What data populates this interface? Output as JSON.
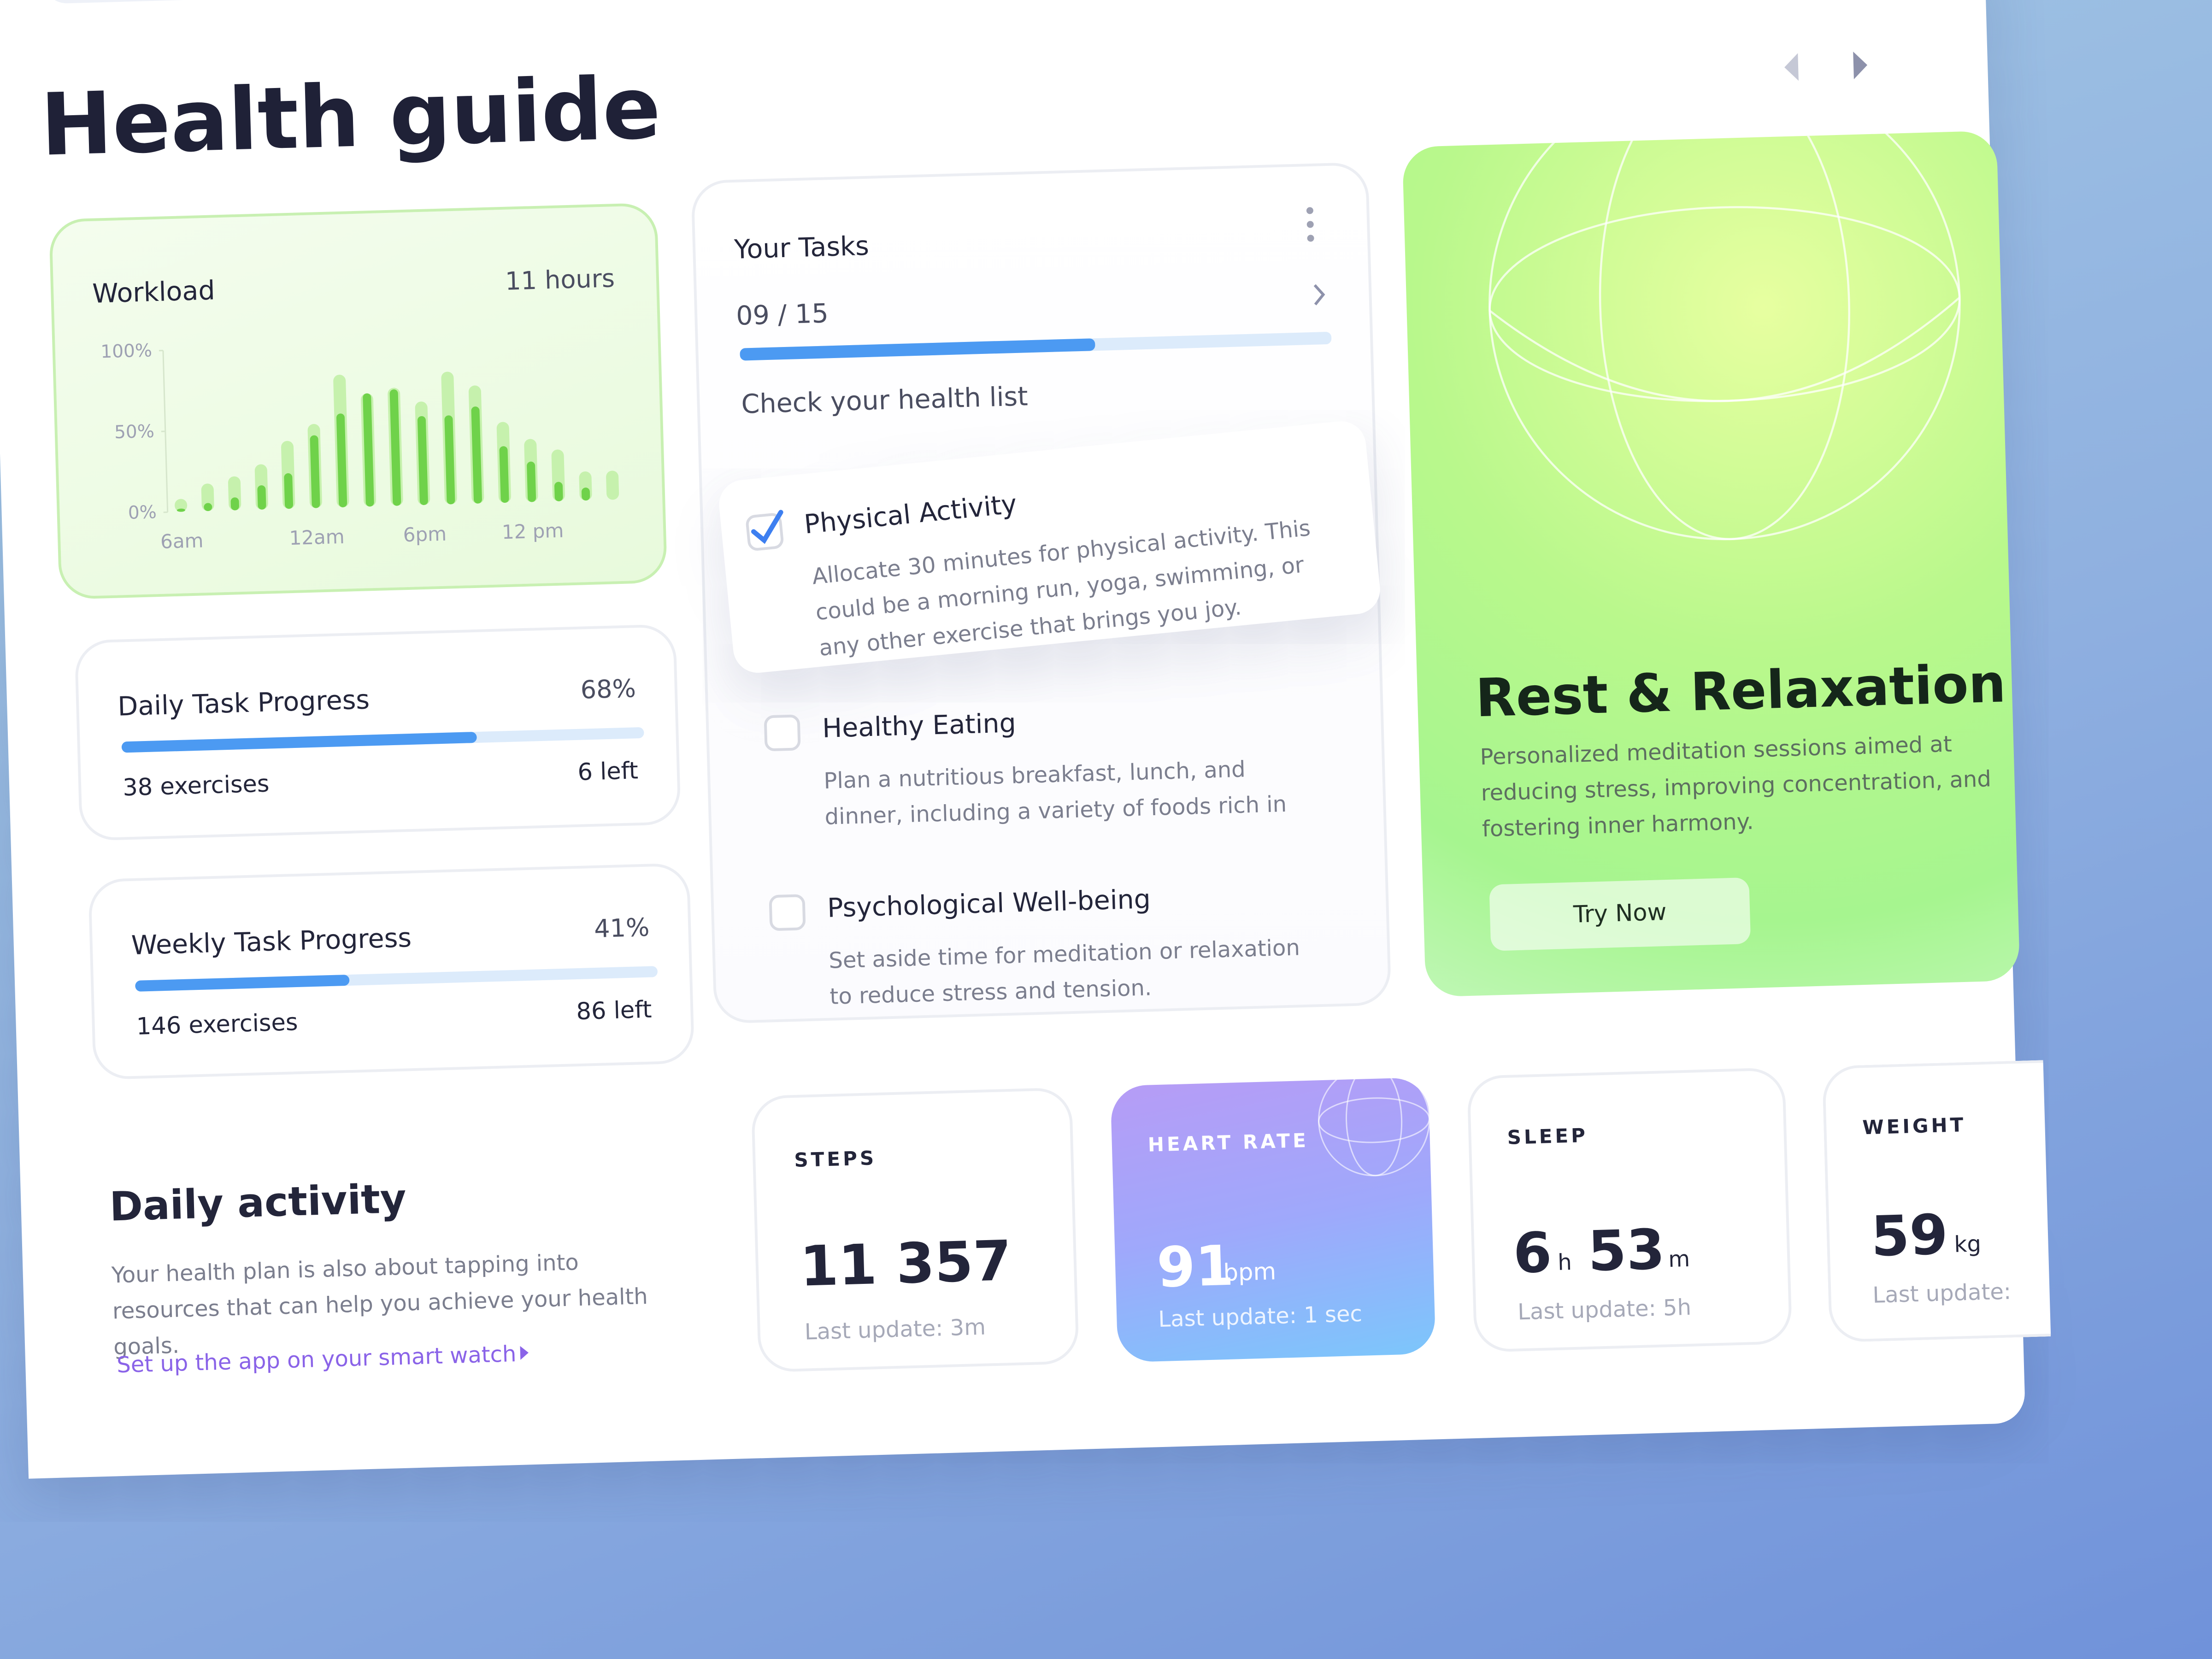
{
  "header": {
    "title": "Health guide"
  },
  "workload": {
    "title": "Workload",
    "total": "11 hours",
    "chart_data": {
      "type": "bar",
      "categories": [
        "6am",
        null,
        null,
        null,
        null,
        "12am",
        null,
        null,
        null,
        "6pm",
        null,
        null,
        null,
        "12 pm",
        null,
        null,
        null
      ],
      "series": [
        {
          "color": "#c6f1ad",
          "values": [
            8,
            17,
            21,
            28,
            42,
            52,
            82,
            70,
            73,
            64,
            82,
            73,
            50,
            39,
            32,
            18,
            18
          ]
        },
        {
          "color": "#6fd24a",
          "values": [
            2,
            5,
            8,
            15,
            22,
            45,
            58,
            70,
            72,
            55,
            55,
            60,
            35,
            25,
            12,
            8,
            0
          ]
        }
      ],
      "ylim": [
        0,
        100
      ],
      "yticks": [
        {
          "value": 0,
          "label": "0%"
        },
        {
          "value": 50,
          "label": "50%"
        },
        {
          "value": 100,
          "label": "100%"
        }
      ]
    }
  },
  "daily_progress": {
    "title": "Daily Task Progress",
    "value": 68,
    "value_label": "68%",
    "exercises": "38 exercises",
    "left": "6 left"
  },
  "weekly_progress": {
    "title": "Weekly Task Progress",
    "value": 41,
    "value_label": "41%",
    "exercises": "146 exercises",
    "left": "86 left"
  },
  "daily_activity": {
    "title": "Daily activity",
    "text": "Your health plan is also about tapping into resources that can help you achieve your health goals.",
    "link": "Set up the app on your smart watch"
  },
  "tasks": {
    "title": "Your Tasks",
    "done": 9,
    "total": 15,
    "count_label": "09 / 15",
    "subtitle": "Check your health list",
    "items": [
      {
        "title": "Physical Activity",
        "text": "Allocate 30 minutes for physical activity. This could be a morning run, yoga, swimming, or any other exercise that brings you joy.",
        "checked": true
      },
      {
        "title": "Healthy Eating",
        "text": "Plan a nutritious breakfast, lunch, and dinner, including a variety of foods rich in",
        "checked": false
      },
      {
        "title": "Psychological Well-being",
        "text": "Set aside time for meditation or relaxation to reduce stress and tension.",
        "checked": false
      }
    ]
  },
  "rest": {
    "title": "Rest & Relaxation",
    "text": "Personalized meditation sessions aimed at reducing stress, improving concentration, and fostering inner harmony.",
    "button": "Try Now"
  },
  "metrics": {
    "steps": {
      "label": "STEPS",
      "value": "11 357",
      "update": "Last update:  3m"
    },
    "heart_rate": {
      "label": "HEART RATE",
      "value": "91",
      "unit": "bpm",
      "update": "Last update: 1 sec"
    },
    "sleep": {
      "label": "SLEEP",
      "hours": "6",
      "hours_unit": "h",
      "minutes": "53",
      "minutes_unit": "m",
      "update": "Last update:  5h"
    },
    "weight": {
      "label": "WEIGHT",
      "value": "59",
      "unit": "kg",
      "update": "Last update:"
    }
  }
}
